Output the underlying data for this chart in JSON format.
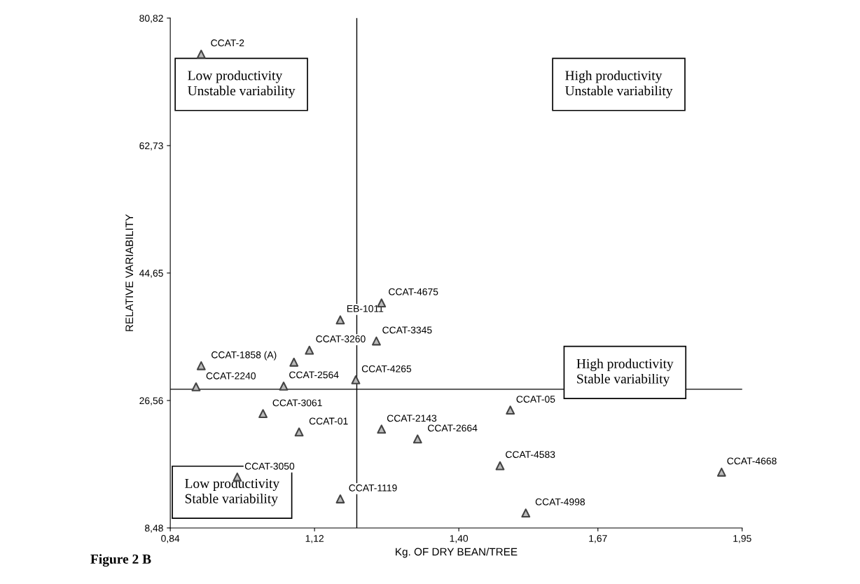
{
  "chart_data": {
    "type": "scatter",
    "xlabel": "Kg. OF DRY BEAN/TREE",
    "ylabel": "RELATIVE VARIABILITY",
    "x": [
      0.9,
      1.25,
      1.17,
      1.24,
      1.11,
      0.9,
      1.08,
      1.2,
      0.89,
      1.06,
      1.02,
      1.09,
      0.97,
      1.17,
      1.25,
      1.32,
      1.5,
      1.48,
      1.91,
      1.53
    ],
    "series": [
      {
        "color": "#444444",
        "values": [
          75.7,
          40.4,
          38.0,
          35.0,
          33.7,
          31.5,
          32.0,
          29.5,
          28.5,
          28.6,
          24.7,
          22.1,
          15.7,
          12.6,
          22.5,
          21.1,
          25.2,
          17.3,
          16.4,
          10.6
        ]
      }
    ],
    "marker": "triangle",
    "grid": false,
    "legend": false,
    "xlim": [
      0.84,
      1.95
    ],
    "ylim": [
      8.48,
      80.82
    ],
    "xticks": [
      {
        "value": 0.84,
        "label": "0,84"
      },
      {
        "value": 1.12,
        "label": "1,12"
      },
      {
        "value": 1.4,
        "label": "1,40"
      },
      {
        "value": 1.67,
        "label": "1,67"
      },
      {
        "value": 1.95,
        "label": "1,95"
      }
    ],
    "yticks": [
      {
        "value": 8.48,
        "label": "8,48"
      },
      {
        "value": 26.56,
        "label": "26,56"
      },
      {
        "value": 44.65,
        "label": "44,65"
      },
      {
        "value": 62.73,
        "label": "62,73"
      },
      {
        "value": 80.82,
        "label": "80,82"
      }
    ],
    "ref_lines": [
      {
        "axis": "x",
        "value": 1.202,
        "color": "#000000"
      },
      {
        "axis": "y",
        "value": 28.16,
        "color": "#000000"
      }
    ],
    "annotations": [
      "Low productivity\nUnstable variability",
      "High productivity\nUnstable variability",
      "High productivity\nStable variability",
      "Low productivity\nStable variability",
      "Figure 2 B",
      {
        "text": "CCAT-2",
        "x": 0.903,
        "y": 75.72
      },
      {
        "text": "CCAT-4675",
        "x": 1.248,
        "y": 40.41
      },
      {
        "text": "EB-1011",
        "x": 1.167,
        "y": 38.02
      },
      {
        "text": "CCAT-3345",
        "x": 1.236,
        "y": 34.98
      },
      {
        "text": "CCAT-3260",
        "x": 1.107,
        "y": 33.72
      },
      {
        "text": "CCAT-1858 (A)",
        "x": 0.904,
        "y": 31.46
      },
      {
        "text": "CCAT-4265",
        "x": 1.196,
        "y": 29.48
      },
      {
        "text": "CCAT-2240",
        "x": 0.894,
        "y": 28.48
      },
      {
        "text": "CCAT-2564",
        "x": 1.055,
        "y": 28.62
      },
      {
        "text": "CCAT-3061",
        "x": 1.023,
        "y": 24.65
      },
      {
        "text": "CCAT-01",
        "x": 1.094,
        "y": 22.06
      },
      {
        "text": "CCAT-3050",
        "x": 0.969,
        "y": 15.66
      },
      {
        "text": "CCAT-1119",
        "x": 1.171,
        "y": 12.58
      },
      {
        "text": "CCAT-2143",
        "x": 1.245,
        "y": 22.46
      },
      {
        "text": "CCAT-2664",
        "x": 1.324,
        "y": 21.07
      },
      {
        "text": "CCAT-05",
        "x": 1.496,
        "y": 25.17
      },
      {
        "text": "CCAT-4583",
        "x": 1.475,
        "y": 17.32
      },
      {
        "text": "CCAT-4668",
        "x": 1.905,
        "y": 16.4
      },
      {
        "text": "CCAT-4998",
        "x": 1.533,
        "y": 10.6
      }
    ]
  }
}
